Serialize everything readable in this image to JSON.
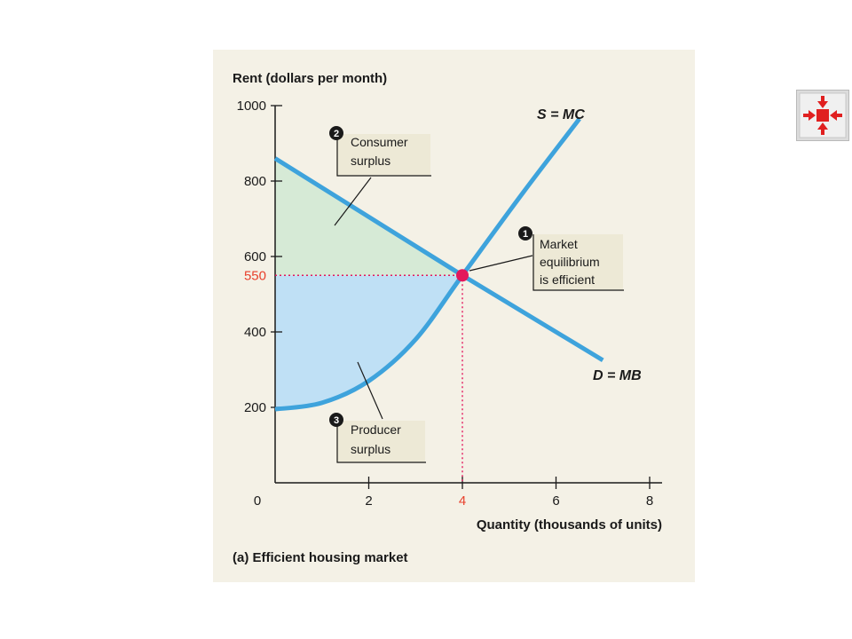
{
  "chart_data": {
    "type": "line",
    "ylabel": "Rent (dollars per month)",
    "xlabel": "Quantity (thousands of units)",
    "caption": "(a)  Efficient housing market",
    "xlim": [
      0,
      8
    ],
    "ylim": [
      0,
      1000
    ],
    "x_ticks": [
      {
        "value": 2,
        "label": "2"
      },
      {
        "value": 4,
        "label": "4",
        "highlight": true
      },
      {
        "value": 6,
        "label": "6"
      },
      {
        "value": 8,
        "label": "8"
      }
    ],
    "y_ticks": [
      {
        "value": 200,
        "label": "200"
      },
      {
        "value": 400,
        "label": "400"
      },
      {
        "value": 550,
        "label": "550",
        "highlight": true
      },
      {
        "value": 600,
        "label": "600"
      },
      {
        "value": 800,
        "label": "800"
      },
      {
        "value": 1000,
        "label": "1000"
      }
    ],
    "origin_label": "0",
    "grid": false,
    "series": [
      {
        "name": "S = MC",
        "color": "#3ea3dc",
        "points": [
          [
            0,
            195
          ],
          [
            1,
            212
          ],
          [
            2,
            270
          ],
          [
            3,
            380
          ],
          [
            4,
            550
          ],
          [
            5.3,
            770
          ],
          [
            6.5,
            965
          ]
        ]
      },
      {
        "name": "D = MB",
        "color": "#3ea3dc",
        "points": [
          [
            0,
            860
          ],
          [
            4,
            550
          ],
          [
            7,
            325
          ]
        ]
      }
    ],
    "equilibrium": {
      "x": 4,
      "y": 550,
      "color": "#e3185c"
    },
    "shaded_regions": [
      {
        "name": "consumer-surplus",
        "color": "#d6ead6"
      },
      {
        "name": "producer-surplus",
        "color": "#bfe0f5"
      }
    ],
    "annotations": [
      {
        "id": "market",
        "number": "1",
        "lines": [
          "Market",
          "equilibrium",
          "is efficient"
        ]
      },
      {
        "id": "consumer",
        "number": "2",
        "lines": [
          "Consumer",
          "surplus"
        ]
      },
      {
        "id": "producer",
        "number": "3",
        "lines": [
          "Producer",
          "surplus"
        ]
      }
    ],
    "colors": {
      "panel": "#f4f1e6",
      "curve": "#3ea3dc",
      "highlight": "#e8402c",
      "guide": "#e3185c",
      "callout_box": "#ede9d6"
    }
  },
  "nav_button": {
    "icon": "collapse-arrows-icon",
    "color": "#e02020"
  }
}
